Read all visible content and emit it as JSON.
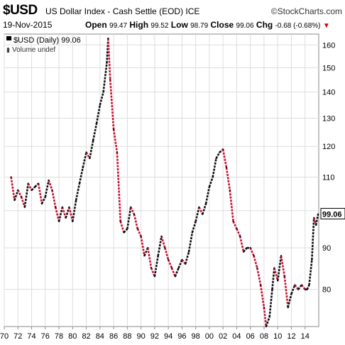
{
  "header": {
    "symbol": "$USD",
    "name": "US Dollar Index - Cash Settle (EOD)",
    "exchange": "ICE",
    "source": "©StockCharts.com",
    "date": "19-Nov-2015",
    "open_label": "Open",
    "open": "99.47",
    "high_label": "High",
    "high": "99.52",
    "low_label": "Low",
    "low": "98.79",
    "close_label": "Close",
    "close": "99.06",
    "chg_label": "Chg",
    "chg": "-0.68 (-0.68%)"
  },
  "legend": {
    "price": "$USD (Daily) 99.06",
    "volume": "Volume undef"
  },
  "colors": {
    "up": "#111111",
    "down": "#cc1133",
    "grid": "#dddddd",
    "border": "#888888",
    "last_price": "#000000"
  },
  "chart_data": {
    "type": "line",
    "title": "$USD US Dollar Index - Cash Settle (EOD) ICE",
    "x_tick_labels": [
      "70",
      "72",
      "74",
      "76",
      "78",
      "80",
      "82",
      "84",
      "86",
      "88",
      "90",
      "92",
      "94",
      "96",
      "98",
      "00",
      "02",
      "04",
      "06",
      "08",
      "10",
      "12",
      "14"
    ],
    "y_tick_labels": [
      "80",
      "90",
      "100",
      "110",
      "120",
      "130",
      "140",
      "150",
      "160"
    ],
    "y_scale": "log",
    "ylim": [
      72,
      165
    ],
    "xlim": [
      1970,
      2016
    ],
    "last_price_label": "99.06",
    "series": [
      {
        "x": [
          1971.0,
          1971.5,
          1972.0,
          1972.5,
          1973.0,
          1973.5,
          1974.0,
          1974.5,
          1975.0,
          1975.5,
          1976.0,
          1976.5,
          1977.0,
          1977.5,
          1978.0,
          1978.5,
          1979.0,
          1979.5,
          1980.0,
          1980.5,
          1981.0,
          1981.5,
          1982.0,
          1982.5,
          1983.0,
          1983.5,
          1984.0,
          1984.5,
          1985.0,
          1985.2,
          1985.5,
          1986.0,
          1986.5,
          1987.0,
          1987.5,
          1988.0,
          1988.5,
          1989.0,
          1989.5,
          1990.0,
          1990.5,
          1991.0,
          1991.5,
          1992.0,
          1992.5,
          1993.0,
          1993.5,
          1994.0,
          1994.5,
          1995.0,
          1995.5,
          1996.0,
          1996.5,
          1997.0,
          1997.5,
          1998.0,
          1998.5,
          1999.0,
          1999.5,
          2000.0,
          2000.5,
          2001.0,
          2001.5,
          2002.0,
          2002.5,
          2003.0,
          2003.5,
          2004.0,
          2004.5,
          2005.0,
          2005.5,
          2006.0,
          2006.5,
          2007.0,
          2007.5,
          2008.0,
          2008.3,
          2008.8,
          2009.2,
          2009.5,
          2010.0,
          2010.5,
          2011.0,
          2011.5,
          2012.0,
          2012.5,
          2013.0,
          2013.5,
          2014.0,
          2014.3,
          2014.6,
          2015.0,
          2015.3,
          2015.6,
          2015.9
        ],
        "values": [
          110,
          103,
          106,
          104,
          101,
          108,
          106,
          107,
          108,
          102,
          104,
          109,
          106,
          101,
          97,
          101,
          98,
          101,
          97,
          103,
          108,
          113,
          118,
          116,
          122,
          128,
          135,
          140,
          152,
          163,
          145,
          126,
          118,
          97,
          94,
          95,
          101,
          99,
          95,
          93,
          88,
          90,
          85,
          83,
          88,
          93,
          90,
          87,
          85,
          83,
          85,
          87,
          86,
          89,
          94,
          97,
          101,
          99,
          102,
          107,
          110,
          116,
          118,
          119,
          113,
          106,
          97,
          95,
          93,
          89,
          90,
          90,
          88,
          85,
          81,
          76,
          72,
          74,
          80,
          85,
          82,
          88,
          83,
          76,
          79,
          81,
          80,
          81,
          80,
          80,
          81,
          87,
          98,
          96,
          99
        ]
      }
    ]
  }
}
